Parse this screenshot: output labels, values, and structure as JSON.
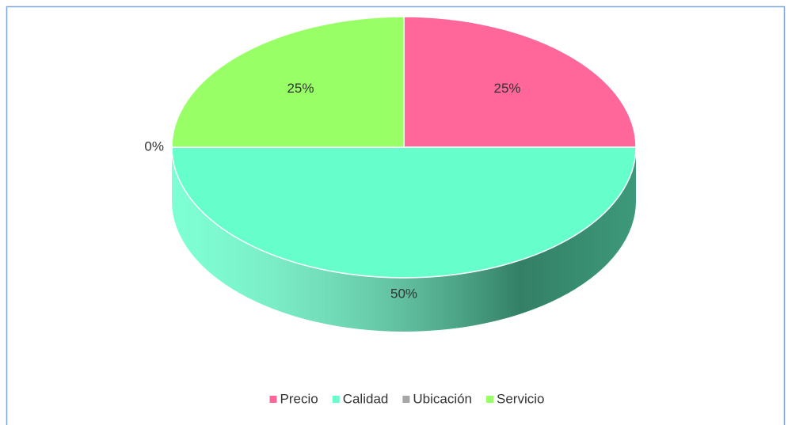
{
  "chart_data": {
    "type": "pie3d",
    "categories": [
      "Precio",
      "Calidad",
      "Ubicación",
      "Servicio"
    ],
    "values": [
      25,
      50,
      0,
      25
    ],
    "value_labels": [
      "25%",
      "50%",
      "0%",
      "25%"
    ],
    "colors": [
      "#ff6699",
      "#66ffcc",
      "#a6a6a6",
      "#99ff66"
    ],
    "legend": "bottom"
  }
}
